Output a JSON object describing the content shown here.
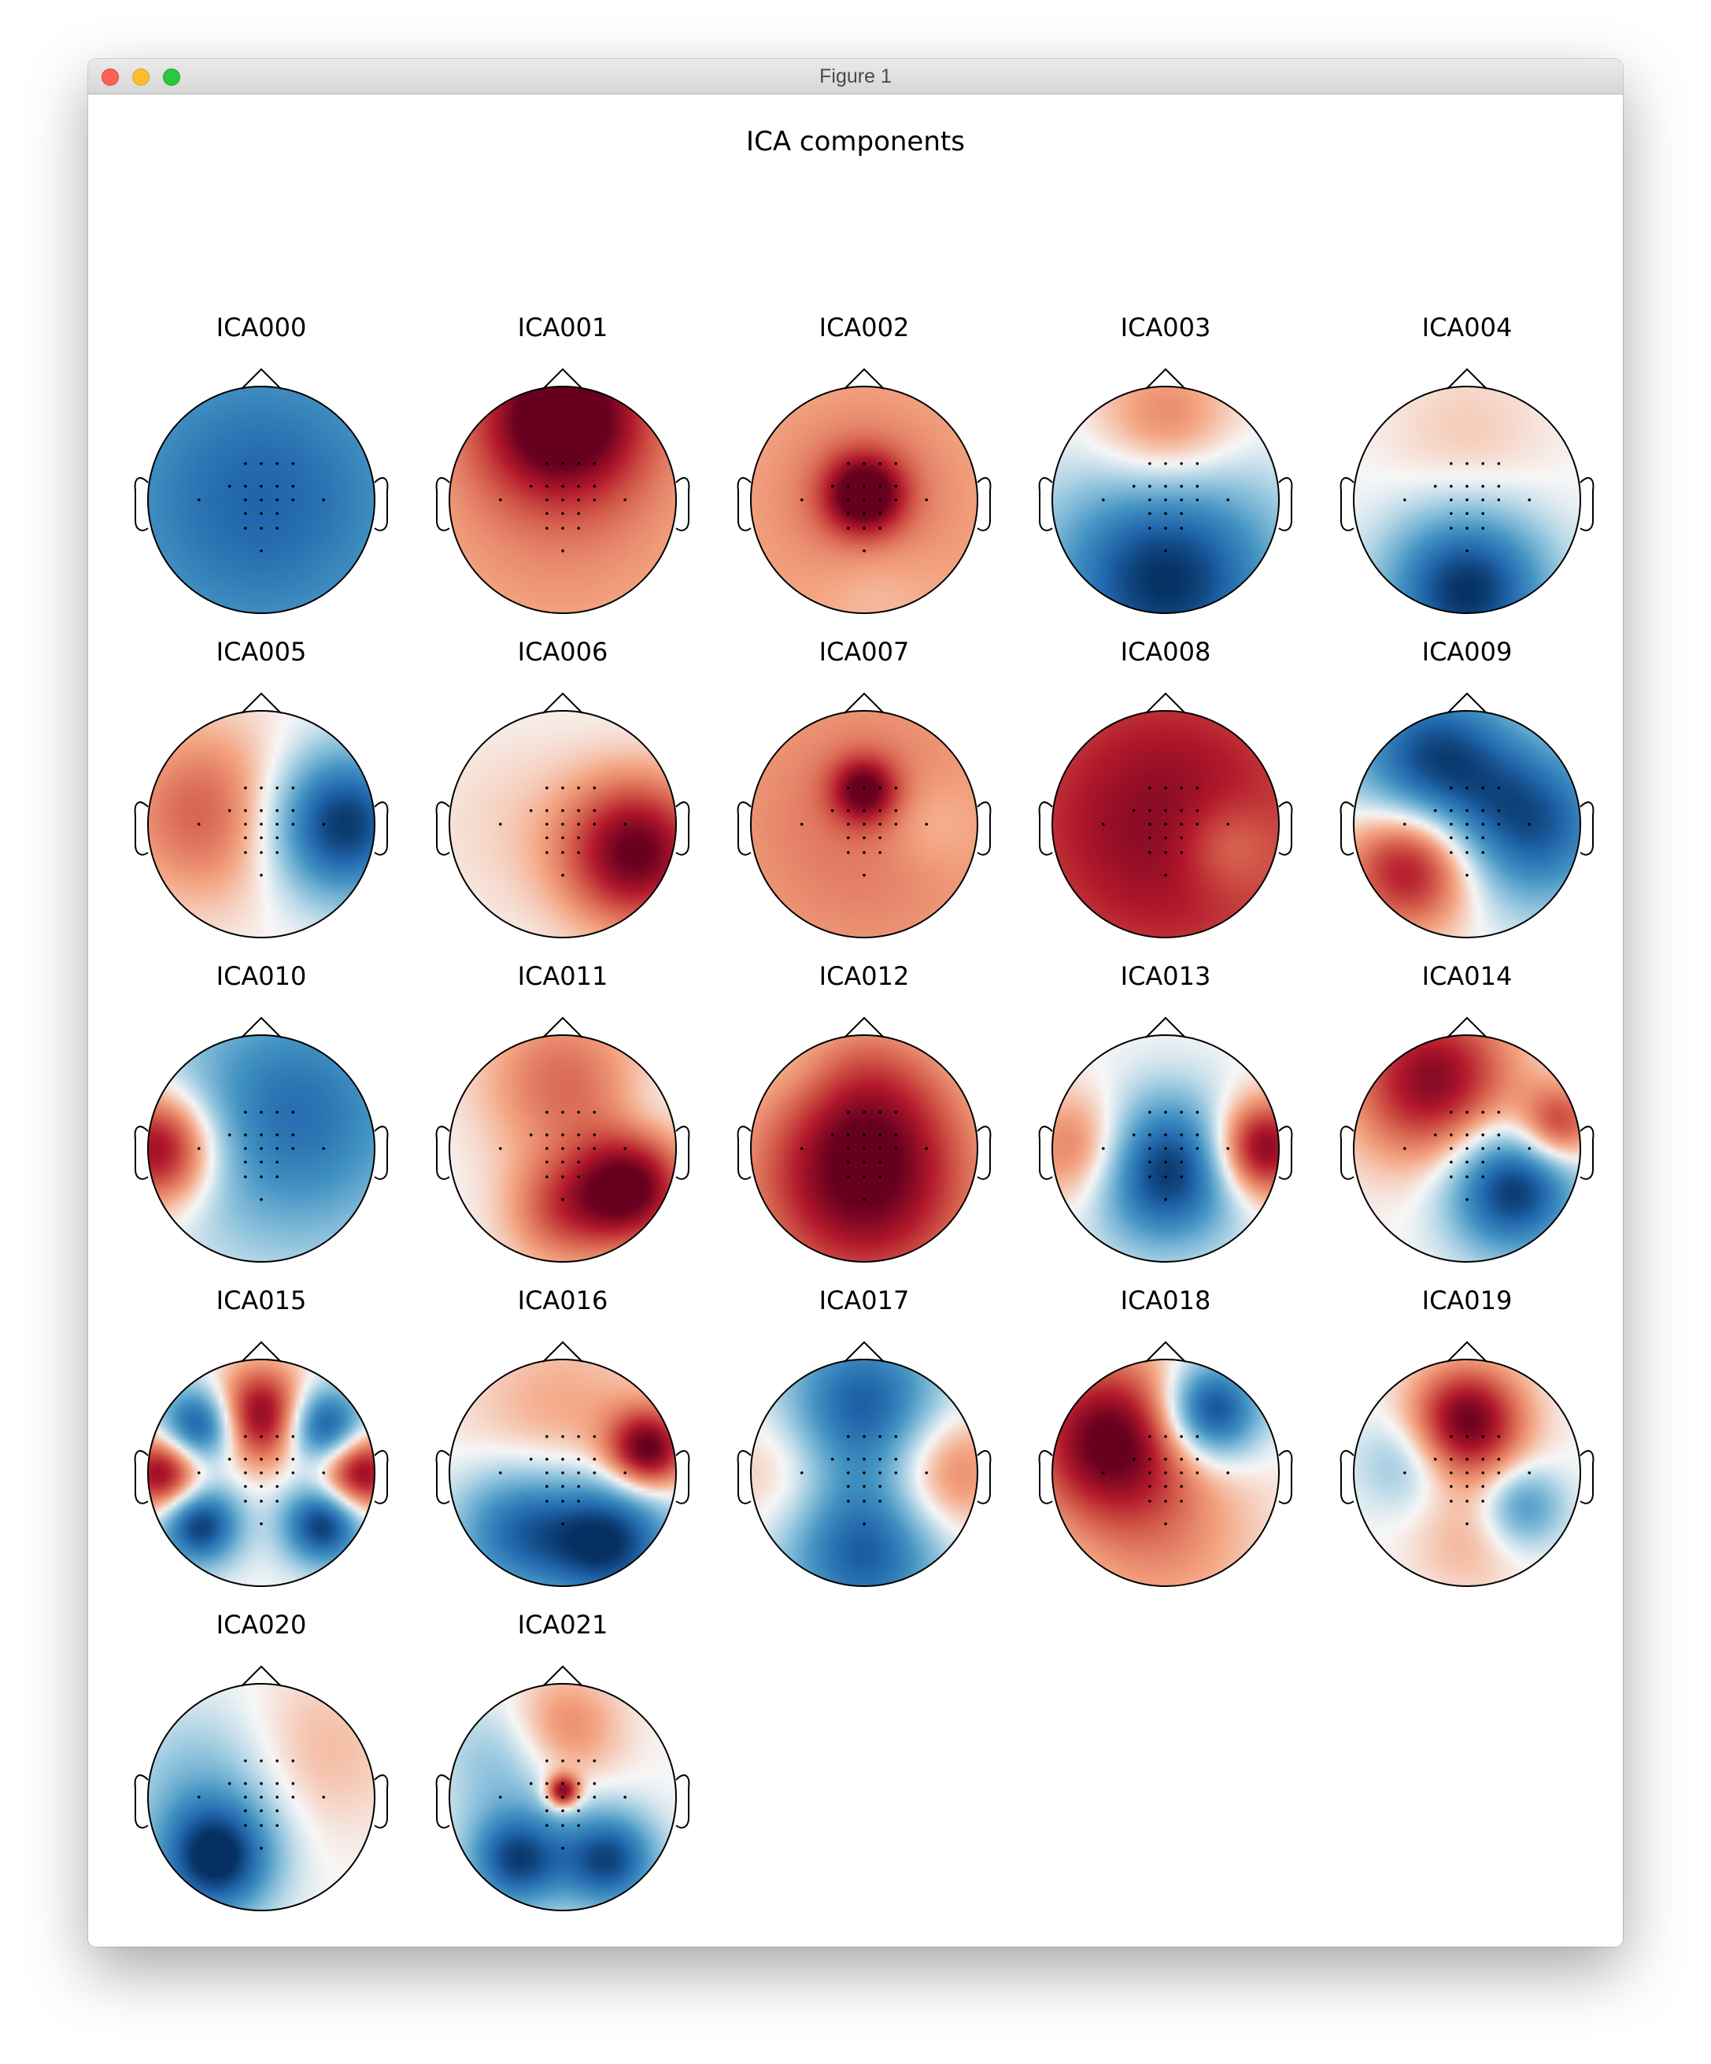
{
  "window": {
    "title": "Figure 1",
    "controls": [
      "close",
      "minimize",
      "maximize"
    ]
  },
  "figure": {
    "title": "ICA components"
  },
  "colormap": {
    "positive": "#67001f",
    "negative": "#053061",
    "neutral": "#f7f7f7"
  },
  "components": [
    {
      "label": "ICA000",
      "blobs": [
        [
          0,
          0,
          1.2,
          -0.75
        ]
      ]
    },
    {
      "label": "ICA001",
      "blobs": [
        [
          0,
          -0.75,
          0.5,
          1.0
        ],
        [
          0,
          0,
          1.3,
          0.35
        ]
      ]
    },
    {
      "label": "ICA002",
      "blobs": [
        [
          0,
          -0.05,
          0.25,
          0.9
        ],
        [
          0,
          0,
          1.2,
          0.38
        ],
        [
          0.1,
          0.75,
          0.35,
          -0.1
        ]
      ]
    },
    {
      "label": "ICA003",
      "blobs": [
        [
          0,
          -0.65,
          0.45,
          0.45
        ],
        [
          0,
          0.7,
          0.7,
          -1.0
        ]
      ]
    },
    {
      "label": "ICA004",
      "blobs": [
        [
          0,
          0.8,
          0.5,
          -1.0
        ],
        [
          0,
          -0.5,
          0.5,
          0.15
        ]
      ]
    },
    {
      "label": "ICA005",
      "blobs": [
        [
          -0.5,
          -0.1,
          0.55,
          0.5
        ],
        [
          0.7,
          0.0,
          0.45,
          -1.0
        ]
      ]
    },
    {
      "label": "ICA006",
      "blobs": [
        [
          0.65,
          0.25,
          0.45,
          1.0
        ],
        [
          -0.4,
          0.0,
          0.6,
          0.1
        ]
      ]
    },
    {
      "label": "ICA007",
      "blobs": [
        [
          0,
          0,
          1.3,
          0.42
        ],
        [
          0,
          -0.3,
          0.2,
          0.7
        ],
        [
          0.6,
          0.0,
          0.3,
          -0.15
        ]
      ]
    },
    {
      "label": "ICA008",
      "blobs": [
        [
          0,
          0,
          1.3,
          0.9
        ],
        [
          0.55,
          0.2,
          0.3,
          -0.3
        ]
      ]
    },
    {
      "label": "ICA009",
      "blobs": [
        [
          -0.5,
          0.35,
          0.4,
          0.9
        ],
        [
          -0.3,
          -0.55,
          0.5,
          -0.9
        ],
        [
          0.6,
          0.0,
          0.5,
          -0.8
        ]
      ]
    },
    {
      "label": "ICA010",
      "blobs": [
        [
          -0.9,
          0,
          0.35,
          1.0
        ],
        [
          0.3,
          -0.3,
          0.8,
          -0.7
        ]
      ]
    },
    {
      "label": "ICA011",
      "blobs": [
        [
          0.6,
          0.35,
          0.35,
          1.0
        ],
        [
          0,
          -0.6,
          0.5,
          0.45
        ],
        [
          0,
          0.55,
          0.35,
          0.5
        ],
        [
          0.75,
          -0.3,
          0.25,
          -0.1
        ]
      ]
    },
    {
      "label": "ICA012",
      "blobs": [
        [
          0,
          0.3,
          0.7,
          1.0
        ],
        [
          -0.5,
          -0.6,
          0.3,
          -0.1
        ],
        [
          0,
          -0.5,
          0.5,
          0.3
        ]
      ]
    },
    {
      "label": "ICA013",
      "blobs": [
        [
          0,
          0.2,
          0.45,
          -1.0
        ],
        [
          0.85,
          0,
          0.3,
          1.0
        ],
        [
          -0.75,
          0,
          0.35,
          0.5
        ]
      ]
    },
    {
      "label": "ICA014",
      "blobs": [
        [
          0.4,
          0.35,
          0.4,
          -1.0
        ],
        [
          -0.3,
          -0.6,
          0.5,
          0.9
        ],
        [
          0.8,
          -0.2,
          0.25,
          0.7
        ]
      ]
    },
    {
      "label": "ICA015",
      "blobs": [
        [
          -0.85,
          0,
          0.25,
          1.0
        ],
        [
          0.85,
          0,
          0.25,
          1.0
        ],
        [
          -0.55,
          -0.4,
          0.25,
          -1.0
        ],
        [
          0.55,
          -0.4,
          0.25,
          -1.0
        ],
        [
          -0.55,
          0.45,
          0.25,
          -1.0
        ],
        [
          0.55,
          0.45,
          0.25,
          -1.0
        ],
        [
          0,
          -0.5,
          0.3,
          1.0
        ]
      ]
    },
    {
      "label": "ICA016",
      "blobs": [
        [
          0.4,
          0.6,
          0.4,
          -1.0
        ],
        [
          -0.4,
          0.5,
          0.4,
          -0.7
        ],
        [
          0.75,
          -0.2,
          0.25,
          1.0
        ],
        [
          0,
          -0.5,
          0.6,
          0.25
        ]
      ]
    },
    {
      "label": "ICA017",
      "blobs": [
        [
          0,
          -0.6,
          0.5,
          -0.8
        ],
        [
          0,
          0.7,
          0.5,
          -0.8
        ],
        [
          0.7,
          0,
          0.4,
          0.5
        ],
        [
          -0.7,
          0,
          0.4,
          0.25
        ]
      ]
    },
    {
      "label": "ICA018",
      "blobs": [
        [
          0.4,
          -0.55,
          0.3,
          -1.0
        ],
        [
          -0.5,
          -0.3,
          0.5,
          1.0
        ],
        [
          0,
          0.6,
          0.6,
          0.3
        ]
      ]
    },
    {
      "label": "ICA019",
      "blobs": [
        [
          0,
          -0.45,
          0.35,
          1.0
        ],
        [
          0.5,
          0.3,
          0.25,
          -0.5
        ],
        [
          -0.55,
          -0.1,
          0.3,
          -0.3
        ],
        [
          0,
          0.6,
          0.35,
          0.2
        ]
      ]
    },
    {
      "label": "ICA020",
      "blobs": [
        [
          -0.4,
          0.55,
          0.35,
          -1.0
        ],
        [
          -0.5,
          -0.1,
          0.5,
          -0.3
        ],
        [
          0.5,
          -0.4,
          0.5,
          0.2
        ]
      ]
    },
    {
      "label": "ICA021",
      "blobs": [
        [
          -0.4,
          0.55,
          0.3,
          -0.9
        ],
        [
          0.4,
          0.55,
          0.3,
          -0.9
        ],
        [
          0,
          -0.6,
          0.35,
          0.4
        ],
        [
          0,
          -0.05,
          0.1,
          1.0
        ],
        [
          -0.5,
          -0.3,
          0.4,
          -0.3
        ]
      ]
    }
  ]
}
